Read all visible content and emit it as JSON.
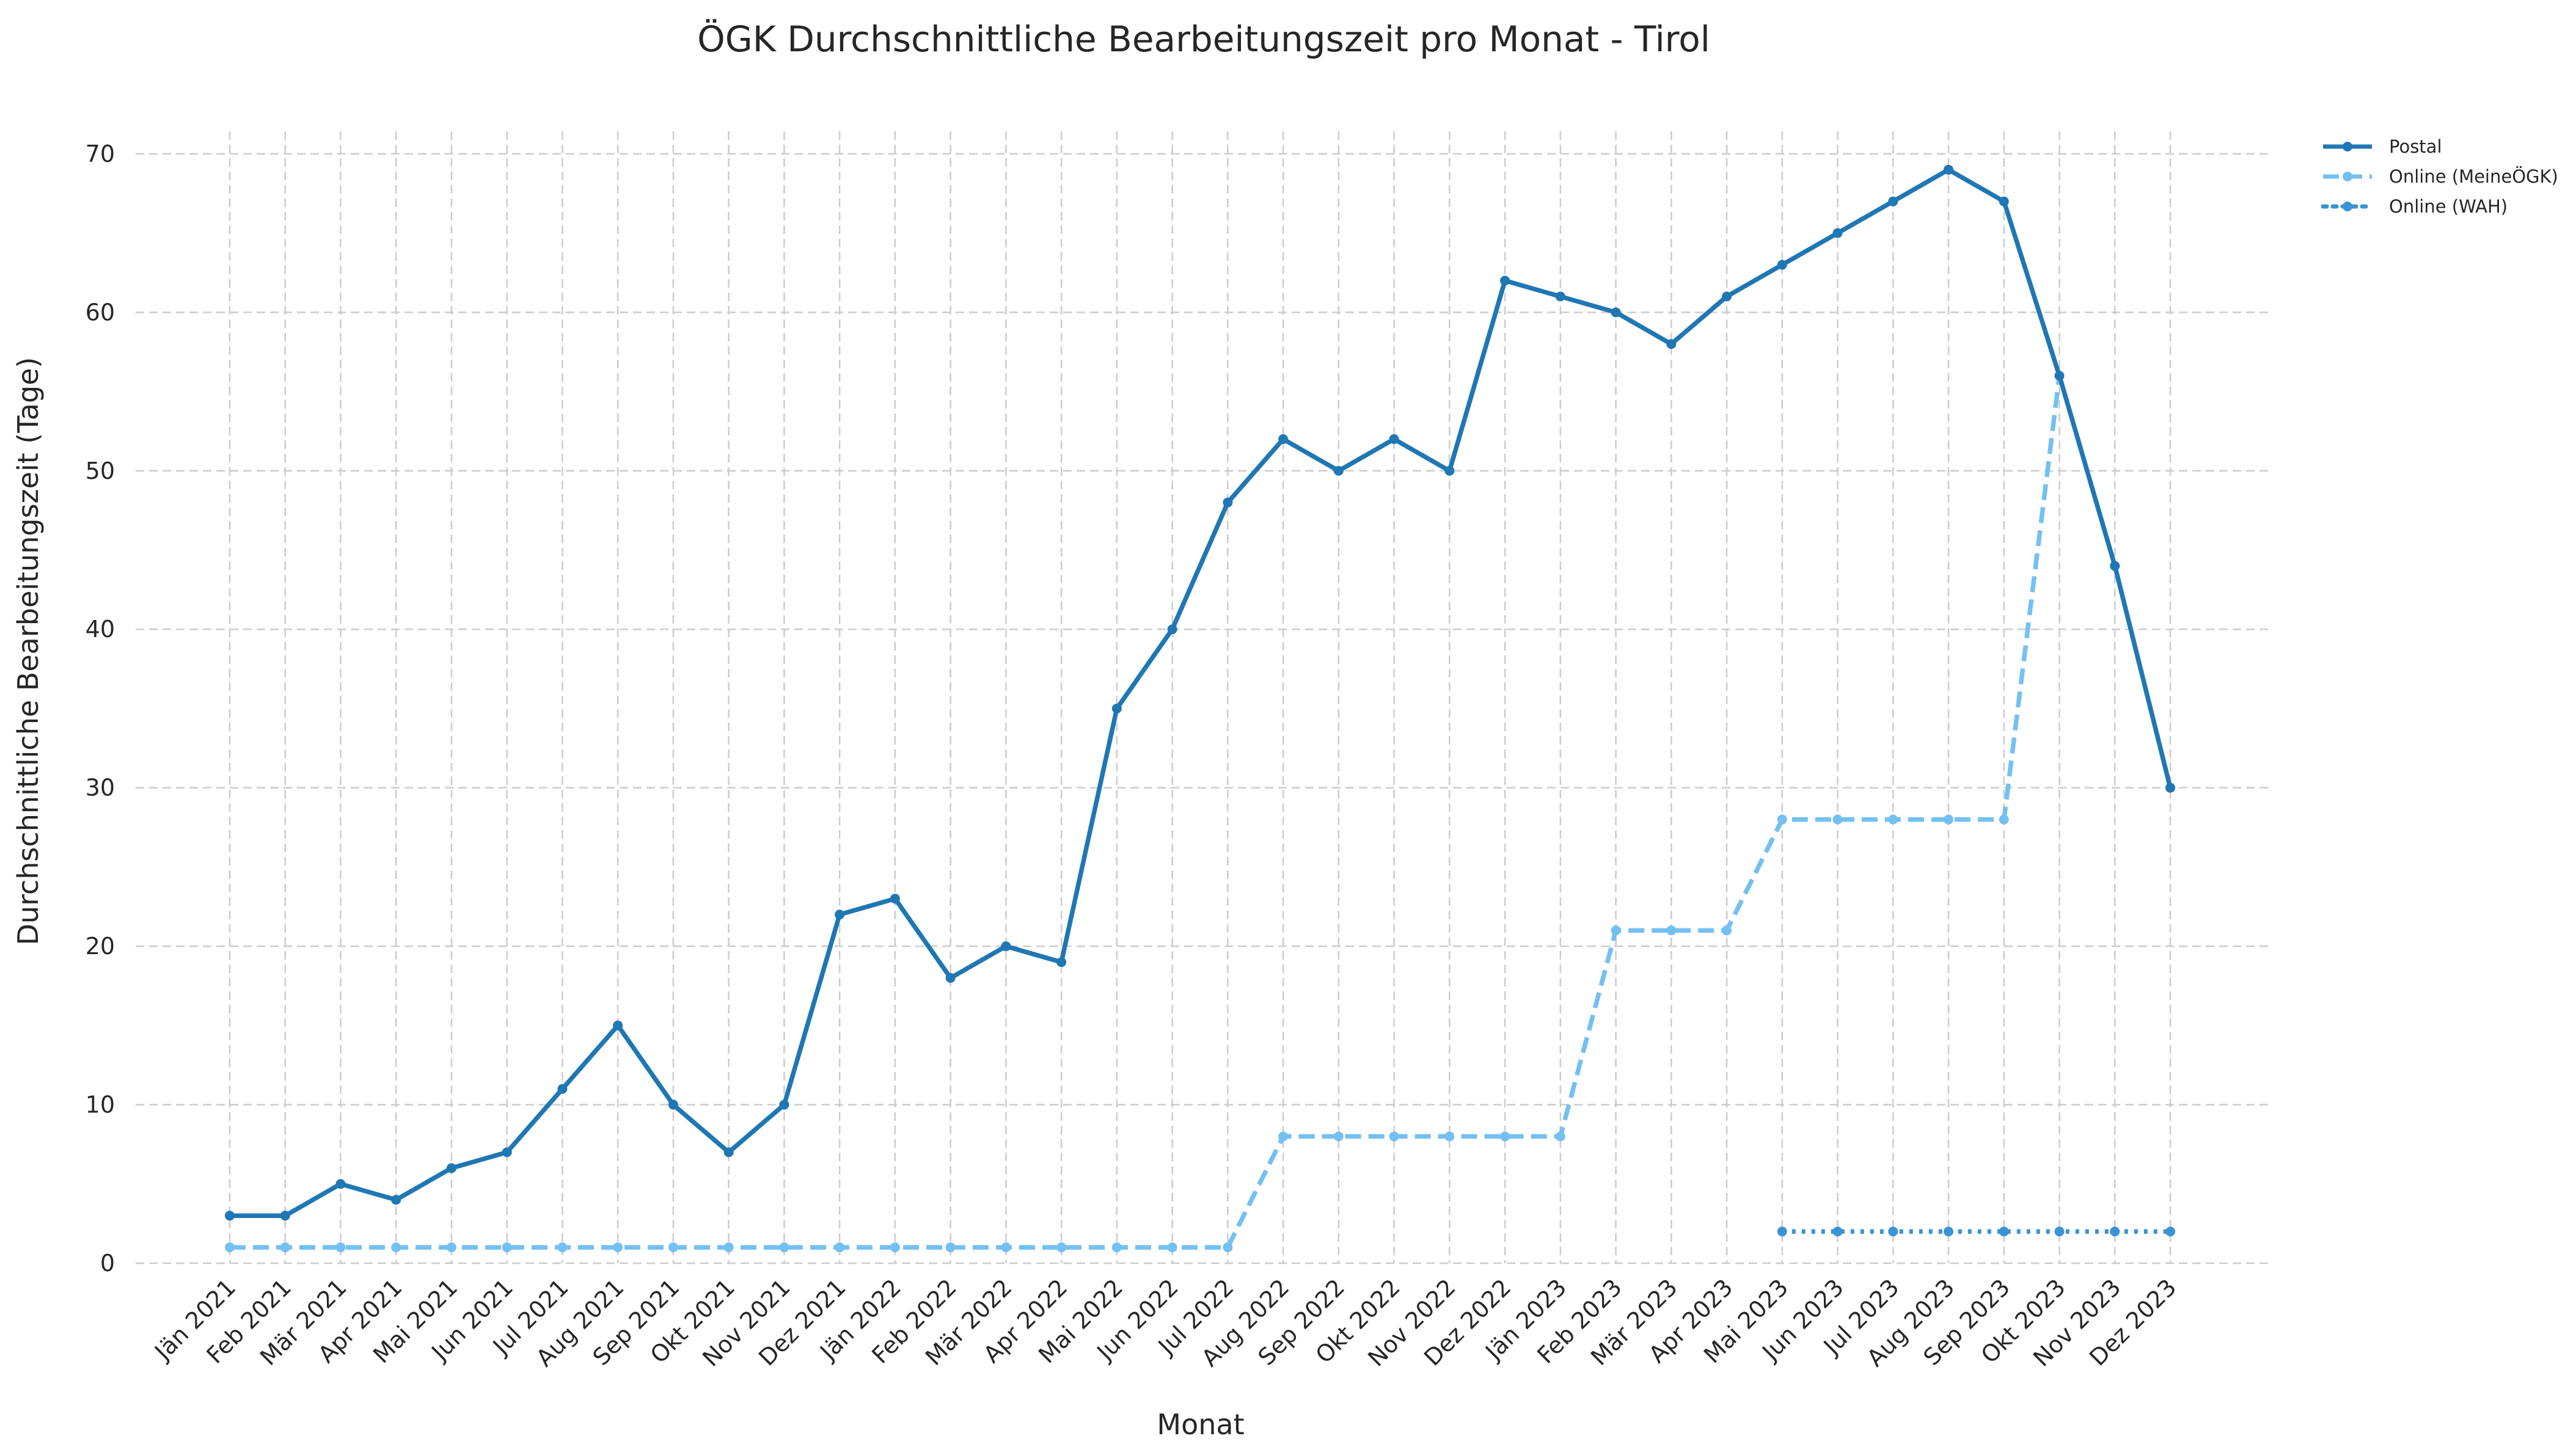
{
  "chart_data": {
    "type": "line",
    "title": "ÖGK Durchschnittliche Bearbeitungszeit pro Monat - Tirol",
    "xlabel": "Monat",
    "ylabel": "Durchschnittliche Bearbeitungszeit (Tage)",
    "ylim": [
      0,
      72
    ],
    "yticks": [
      0,
      10,
      20,
      30,
      40,
      50,
      60,
      70
    ],
    "grid": true,
    "legend_position": "outside-top-right",
    "categories": [
      "Jän 2021",
      "Feb 2021",
      "Mär 2021",
      "Apr 2021",
      "Mai 2021",
      "Jun 2021",
      "Jul 2021",
      "Aug 2021",
      "Sep 2021",
      "Okt 2021",
      "Nov 2021",
      "Dez 2021",
      "Jän 2022",
      "Feb 2022",
      "Mär 2022",
      "Apr 2022",
      "Mai 2022",
      "Jun 2022",
      "Jul 2022",
      "Aug 2022",
      "Sep 2022",
      "Okt 2022",
      "Nov 2022",
      "Dez 2022",
      "Jän 2023",
      "Feb 2023",
      "Mär 2023",
      "Apr 2023",
      "Mai 2023",
      "Jun 2023",
      "Jul 2023",
      "Aug 2023",
      "Sep 2023",
      "Okt 2023",
      "Nov 2023",
      "Dez 2023"
    ],
    "series": [
      {
        "name": "Postal",
        "color": "#1f77b4",
        "style": "solid",
        "values": [
          3,
          3,
          5,
          4,
          6,
          7,
          11,
          15,
          10,
          7,
          10,
          22,
          23,
          18,
          20,
          19,
          35,
          40,
          48,
          52,
          50,
          52,
          50,
          62,
          61,
          60,
          58,
          61,
          63,
          65,
          67,
          69,
          67,
          56,
          44,
          30
        ]
      },
      {
        "name": "Online (MeineÖGK)",
        "color": "#74c0f2",
        "style": "dashed",
        "values": [
          1,
          1,
          1,
          1,
          1,
          1,
          1,
          1,
          1,
          1,
          1,
          1,
          1,
          1,
          1,
          1,
          1,
          1,
          1,
          8,
          8,
          8,
          8,
          8,
          8,
          21,
          21,
          21,
          28,
          28,
          28,
          28,
          28,
          56,
          44,
          30
        ]
      },
      {
        "name": "Online (WAH)",
        "color": "#3a93d4",
        "style": "dotted",
        "values": [
          null,
          null,
          null,
          null,
          null,
          null,
          null,
          null,
          null,
          null,
          null,
          null,
          null,
          null,
          null,
          null,
          null,
          null,
          null,
          null,
          null,
          null,
          null,
          null,
          null,
          null,
          null,
          null,
          2,
          2,
          2,
          2,
          2,
          2,
          2,
          2
        ]
      }
    ]
  }
}
